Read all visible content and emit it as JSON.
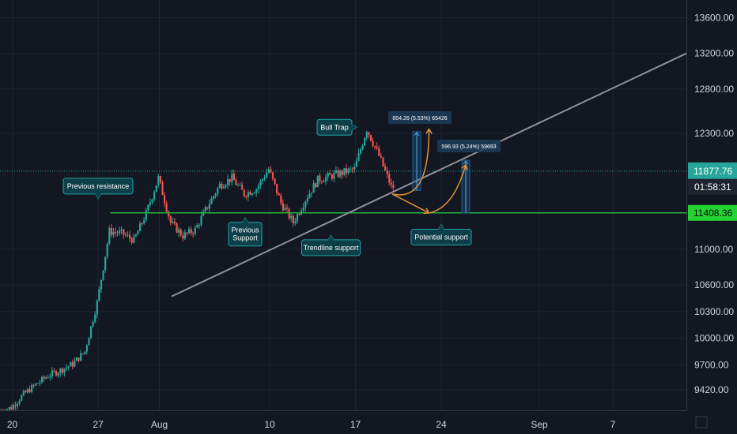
{
  "colors": {
    "background": "#131722",
    "grid": "#1f2230",
    "up_candle": "#26a69a",
    "down_candle": "#ef5350",
    "trendline": "#8f9099",
    "support_line": "#21b53c",
    "current_price_line": "#26a69a",
    "projection_arrow": "#e3913a",
    "callout_fill": "#0e3f49",
    "callout_border": "#1fa5a5",
    "measure_bar": "#1e5e96",
    "axis_text": "#d1d4dc"
  },
  "chart_data": {
    "type": "candlestick",
    "y_axis": {
      "ticks": [
        9420,
        9700,
        10000,
        10300,
        10600,
        11000,
        12300,
        12800,
        13200,
        13600
      ],
      "tick_labels": [
        "9420.00",
        "9700.00",
        "10000.00",
        "10300.00",
        "10600.00",
        "11000.00",
        "12300.00",
        "12800.00",
        "13200.00",
        "13600.00"
      ],
      "range": [
        9190,
        13800
      ]
    },
    "x_axis": {
      "range": [
        "2020-07-19",
        "2020-09-13"
      ],
      "ticks": [
        {
          "date": "2020-07-20",
          "label": "20"
        },
        {
          "date": "2020-07-27",
          "label": "27"
        },
        {
          "date": "2020-08-01",
          "label": "Aug"
        },
        {
          "date": "2020-08-10",
          "label": "10"
        },
        {
          "date": "2020-08-17",
          "label": "17"
        },
        {
          "date": "2020-08-24",
          "label": "24"
        },
        {
          "date": "2020-09-01",
          "label": "Sep"
        },
        {
          "date": "2020-09-07",
          "label": "7"
        }
      ]
    },
    "price_anchors": [
      [
        "2020-07-19",
        9180
      ],
      [
        "2020-07-20",
        9220
      ],
      [
        "2020-07-21",
        9370
      ],
      [
        "2020-07-22",
        9480
      ],
      [
        "2020-07-23",
        9580
      ],
      [
        "2020-07-24",
        9640
      ],
      [
        "2020-07-25",
        9710
      ],
      [
        "2020-07-26",
        9850
      ],
      [
        "2020-07-27",
        10400
      ],
      [
        "2020-07-28",
        11200
      ],
      [
        "2020-07-29",
        11180
      ],
      [
        "2020-07-30",
        11100
      ],
      [
        "2020-07-31",
        11400
      ],
      [
        "2020-08-01",
        11800
      ],
      [
        "2020-08-02",
        11300
      ],
      [
        "2020-08-03",
        11150
      ],
      [
        "2020-08-04",
        11220
      ],
      [
        "2020-08-05",
        11480
      ],
      [
        "2020-08-06",
        11720
      ],
      [
        "2020-08-07",
        11800
      ],
      [
        "2020-08-08",
        11620
      ],
      [
        "2020-08-09",
        11680
      ],
      [
        "2020-08-10",
        11900
      ],
      [
        "2020-08-11",
        11520
      ],
      [
        "2020-08-12",
        11300
      ],
      [
        "2020-08-13",
        11560
      ],
      [
        "2020-08-14",
        11780
      ],
      [
        "2020-08-15",
        11820
      ],
      [
        "2020-08-16",
        11860
      ],
      [
        "2020-08-17",
        11900
      ],
      [
        "2020-08-18",
        12350
      ],
      [
        "2020-08-19",
        12050
      ],
      [
        "2020-08-20",
        11700
      ]
    ],
    "current_price": 11877.76,
    "countdown": "01:58:31",
    "support_price": 11408.36,
    "support_line_start": "2020-07-28",
    "resistance_line_start": "2020-07-19",
    "trendline": {
      "from": [
        "2020-08-02",
        10470
      ],
      "to": [
        "2020-09-13",
        13200
      ]
    },
    "projections": [
      {
        "path": [
          [
            "2020-08-20",
            11620
          ],
          [
            "2020-08-22",
            11560
          ],
          [
            "2020-08-23",
            11780
          ],
          [
            "2020-08-23",
            12350
          ]
        ]
      },
      {
        "path": [
          [
            "2020-08-20",
            11620
          ],
          [
            "2020-08-23",
            11408
          ]
        ]
      },
      {
        "path": [
          [
            "2020-08-23",
            11408
          ],
          [
            "2020-08-25",
            11460
          ],
          [
            "2020-08-26",
            11950
          ]
        ]
      }
    ],
    "measurements": [
      {
        "date": "2020-08-22",
        "from": 11660,
        "to": 12320,
        "label": "654.26 (5.53%) 65426"
      },
      {
        "date": "2020-08-26",
        "from": 11408,
        "to": 12000,
        "label": "596.93 (5.24%) 59693"
      }
    ],
    "annotations": [
      {
        "text": "Previous resistance",
        "date": "2020-07-27",
        "price": 11408
      },
      {
        "text": "Previous\nSupport",
        "date": "2020-08-08",
        "price": 11400
      },
      {
        "text": "Trendline support",
        "date": "2020-08-15",
        "price": 11230
      },
      {
        "text": "Bull Trap",
        "date": "2020-08-18",
        "price": 12370
      },
      {
        "text": "Potential support",
        "date": "2020-08-24",
        "price": 11420
      }
    ]
  }
}
